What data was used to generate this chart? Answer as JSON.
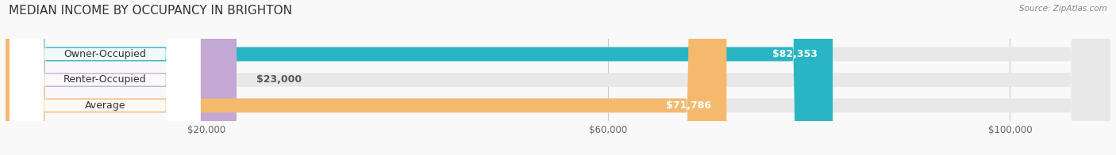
{
  "title": "MEDIAN INCOME BY OCCUPANCY IN BRIGHTON",
  "source": "Source: ZipAtlas.com",
  "categories": [
    "Owner-Occupied",
    "Renter-Occupied",
    "Average"
  ],
  "values": [
    82353,
    23000,
    71786
  ],
  "labels": [
    "$82,353",
    "$23,000",
    "$71,786"
  ],
  "bar_colors": [
    "#29b5c3",
    "#c4a8d4",
    "#f5b96e"
  ],
  "bar_bg_color": "#e8e8e8",
  "xmax": 110000,
  "xticklabels": [
    "$20,000",
    "$60,000",
    "$100,000"
  ],
  "xtick_vals": [
    20000,
    60000,
    100000
  ],
  "title_fontsize": 11,
  "label_fontsize": 9,
  "tick_fontsize": 8.5,
  "bar_height": 0.55,
  "background_color": "#f9f9f9"
}
